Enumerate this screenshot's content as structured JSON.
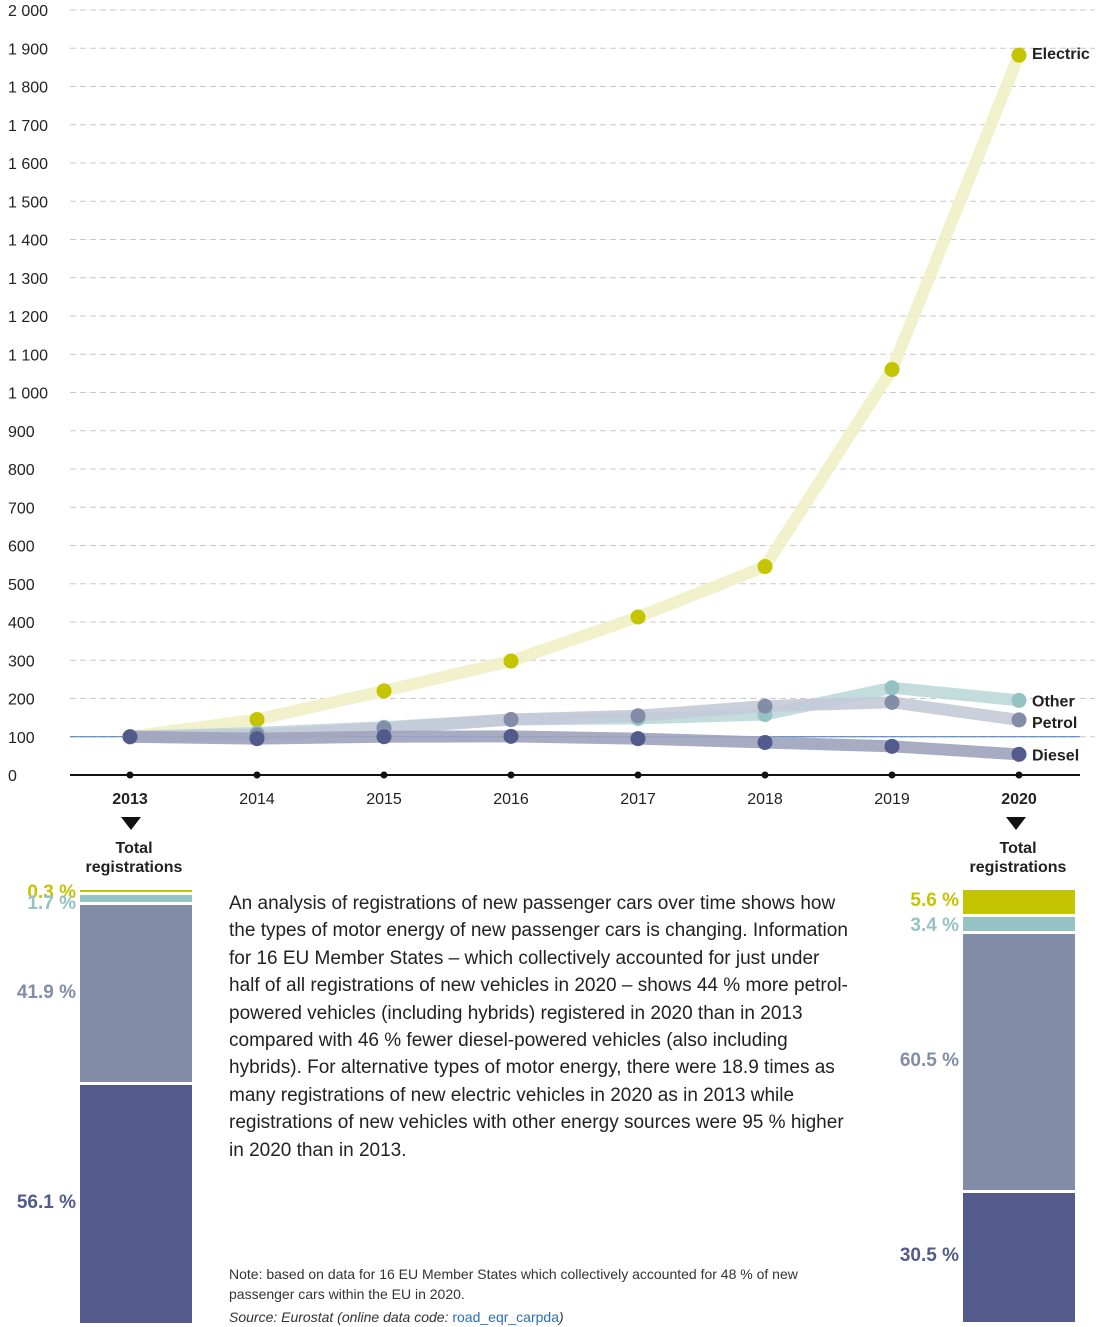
{
  "chart_data": {
    "type": "line",
    "x": [
      "2013",
      "2014",
      "2015",
      "2016",
      "2017",
      "2018",
      "2019",
      "2020"
    ],
    "bold_x_labels": [
      "2013",
      "2020"
    ],
    "ylim": [
      0,
      2000
    ],
    "y_ticks": [
      "0",
      "100",
      "200",
      "300",
      "400",
      "500",
      "600",
      "700",
      "800",
      "900",
      "1 000",
      "1 100",
      "1 200",
      "1 300",
      "1 400",
      "1 500",
      "1 600",
      "1 700",
      "1 800",
      "1 900",
      "2 000"
    ],
    "reference_line": 100,
    "grid": "dashed horizontal",
    "series": [
      {
        "name": "Electric",
        "color": "#c5c400",
        "line_color": "#efefc6",
        "values": [
          100,
          145,
          220,
          298,
          413,
          545,
          1060,
          1882
        ]
      },
      {
        "name": "Other",
        "color": "#95c2c2",
        "line_color": "#bcd9d9",
        "values": [
          100,
          110,
          125,
          145,
          148,
          158,
          228,
          195
        ]
      },
      {
        "name": "Petrol",
        "color": "#838da8",
        "line_color": "#c5cad8",
        "values": [
          100,
          105,
          122,
          145,
          155,
          180,
          190,
          144
        ]
      },
      {
        "name": "Diesel",
        "color": "#535b8c",
        "line_color": "#9ea3bd",
        "values": [
          100,
          95,
          100,
          101,
          95,
          85,
          75,
          54
        ]
      }
    ]
  },
  "stacked_bars": [
    {
      "year": "2013",
      "label": "Total registrations",
      "segments": [
        {
          "name": "Electric",
          "pct_text": "0.3 %",
          "value": 0.3,
          "color": "#c5c400"
        },
        {
          "name": "Other",
          "pct_text": "1.7 %",
          "value": 1.7,
          "color": "#95c2c2"
        },
        {
          "name": "Petrol",
          "pct_text": "41.9 %",
          "value": 41.9,
          "color": "#838da8"
        },
        {
          "name": "Diesel",
          "pct_text": "56.1 %",
          "value": 56.1,
          "color": "#535b8c"
        }
      ]
    },
    {
      "year": "2020",
      "label": "Total registrations",
      "segments": [
        {
          "name": "Electric",
          "pct_text": "5.6 %",
          "value": 5.6,
          "color": "#c5c400"
        },
        {
          "name": "Other",
          "pct_text": "3.4 %",
          "value": 3.4,
          "color": "#95c2c2"
        },
        {
          "name": "Petrol",
          "pct_text": "60.5 %",
          "value": 60.5,
          "color": "#838da8"
        },
        {
          "name": "Diesel",
          "pct_text": "30.5 %",
          "value": 30.5,
          "color": "#535b8c"
        }
      ]
    }
  ],
  "text": {
    "body": "An analysis of registrations of new passenger cars over time shows how the types of motor energy of new passenger cars is changing. Information for 16 EU Member States – which collectively accounted for just under half of all registrations of new vehicles in 2020 – shows 44 % more petrol-powered vehicles (including hybrids) registered in 2020 than in 2013 compared with 46 % fewer diesel-powered vehicles (also including hybrids). For alternative types of motor energy, there were 18.9 times as many registrations of new electric vehicles in 2020 as in 2013 while registrations of new vehicles with other energy sources were 95 % higher in 2020 than in 2013.",
    "note": "Note: based on data for 16 EU Member States which collectively accounted for 48 % of new passenger cars within the EU  in 2020.",
    "source_prefix": "Source: Eurostat (online data code: ",
    "source_code": "road_eqr_carpda",
    "source_suffix": ")"
  }
}
